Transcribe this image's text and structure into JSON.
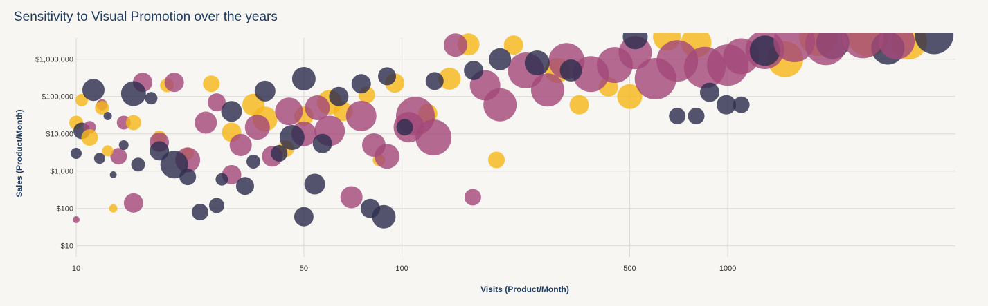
{
  "chart_data": {
    "type": "scatter",
    "title": "Sensitivity to Visual Promotion over the years",
    "xlabel": "Visits (Product/Month)",
    "ylabel": "Sales (Product/Month)",
    "x_scale": "log",
    "y_scale": "log",
    "xlim": [
      10,
      5000
    ],
    "ylim": [
      5,
      5000000
    ],
    "x_ticks": [
      {
        "value": 10,
        "label": "10"
      },
      {
        "value": 50,
        "label": "50"
      },
      {
        "value": 100,
        "label": "100"
      },
      {
        "value": 500,
        "label": "500"
      },
      {
        "value": 1000,
        "label": "1000"
      }
    ],
    "y_ticks": [
      {
        "value": 10,
        "label": "$10"
      },
      {
        "value": 100,
        "label": "$100"
      },
      {
        "value": 1000,
        "label": "$1,000"
      },
      {
        "value": 10000,
        "label": "$10,000"
      },
      {
        "value": 100000,
        "label": "$100,000"
      },
      {
        "value": 1000000,
        "label": "$1,000,000"
      }
    ],
    "grid": true,
    "legend": "none",
    "colors": [
      "#2e2e4f",
      "#f6b71c",
      "#a4497a"
    ],
    "series": [
      {
        "color": "#2e2e4f",
        "points": [
          [
            10,
            3000,
            8
          ],
          [
            10.4,
            12000,
            12
          ],
          [
            11.3,
            150000,
            16
          ],
          [
            11.8,
            2200,
            8
          ],
          [
            12.5,
            30000,
            6
          ],
          [
            13,
            800,
            5
          ],
          [
            14,
            5000,
            7
          ],
          [
            15,
            120000,
            18
          ],
          [
            15.5,
            1500,
            10
          ],
          [
            17,
            90000,
            9
          ],
          [
            18,
            3500,
            14
          ],
          [
            20,
            1500,
            20
          ],
          [
            22,
            700,
            12
          ],
          [
            24,
            80,
            12
          ],
          [
            27,
            120,
            11
          ],
          [
            28,
            600,
            9
          ],
          [
            30,
            40000,
            15
          ],
          [
            33,
            400,
            13
          ],
          [
            35,
            1800,
            10
          ],
          [
            38,
            140000,
            15
          ],
          [
            42,
            3000,
            12
          ],
          [
            46,
            8000,
            18
          ],
          [
            50,
            300000,
            17
          ],
          [
            50,
            60,
            14
          ],
          [
            54,
            450,
            15
          ],
          [
            57,
            5500,
            14
          ],
          [
            64,
            100000,
            14
          ],
          [
            75,
            220000,
            14
          ],
          [
            80,
            100,
            14
          ],
          [
            88,
            60,
            17
          ],
          [
            90,
            350000,
            13
          ],
          [
            102,
            15000,
            12
          ],
          [
            126,
            260000,
            13
          ],
          [
            166,
            500000,
            14
          ],
          [
            200,
            1000000,
            16
          ],
          [
            260,
            800000,
            18
          ],
          [
            330,
            500000,
            16
          ],
          [
            520,
            4000000,
            18
          ],
          [
            700,
            30000,
            12
          ],
          [
            800,
            30000,
            12
          ],
          [
            880,
            130000,
            14
          ],
          [
            990,
            60000,
            14
          ],
          [
            1100,
            60000,
            12
          ],
          [
            1300,
            1700000,
            22
          ],
          [
            2100,
            2800000,
            24
          ],
          [
            3100,
            2000000,
            24
          ],
          [
            4300,
            4500000,
            28
          ]
        ]
      },
      {
        "color": "#f6b71c",
        "points": [
          [
            10,
            20000,
            10
          ],
          [
            10.4,
            80000,
            9
          ],
          [
            11,
            8000,
            12
          ],
          [
            12,
            50000,
            10
          ],
          [
            12.5,
            3500,
            8
          ],
          [
            13,
            100,
            6
          ],
          [
            15,
            20000,
            11
          ],
          [
            18,
            8000,
            10
          ],
          [
            19,
            200000,
            10
          ],
          [
            22,
            3000,
            9
          ],
          [
            26,
            220000,
            12
          ],
          [
            30,
            11000,
            14
          ],
          [
            35,
            60000,
            16
          ],
          [
            38,
            25000,
            18
          ],
          [
            44,
            4000,
            12
          ],
          [
            50,
            30000,
            14
          ],
          [
            60,
            70000,
            18
          ],
          [
            66,
            40000,
            14
          ],
          [
            78,
            110000,
            12
          ],
          [
            85,
            2000,
            9
          ],
          [
            95,
            230000,
            14
          ],
          [
            120,
            35000,
            14
          ],
          [
            140,
            300000,
            16
          ],
          [
            160,
            2500000,
            16
          ],
          [
            195,
            2000,
            12
          ],
          [
            220,
            2400000,
            14
          ],
          [
            300,
            500000,
            18
          ],
          [
            350,
            60000,
            14
          ],
          [
            430,
            180000,
            14
          ],
          [
            500,
            100000,
            18
          ],
          [
            650,
            4000000,
            20
          ],
          [
            800,
            2800000,
            22
          ],
          [
            1500,
            1000000,
            26
          ],
          [
            1900,
            4000000,
            28
          ],
          [
            2700,
            4200000,
            30
          ],
          [
            3600,
            3000000,
            26
          ]
        ]
      },
      {
        "color": "#a4497a",
        "points": [
          [
            10,
            50,
            5
          ],
          [
            11,
            15000,
            9
          ],
          [
            12,
            60000,
            8
          ],
          [
            13.5,
            2500,
            12
          ],
          [
            14,
            20000,
            10
          ],
          [
            15,
            140,
            14
          ],
          [
            16,
            240000,
            14
          ],
          [
            18,
            6000,
            14
          ],
          [
            20,
            240000,
            14
          ],
          [
            22,
            2000,
            18
          ],
          [
            25,
            20000,
            16
          ],
          [
            27,
            70000,
            13
          ],
          [
            30,
            800,
            14
          ],
          [
            32,
            5000,
            16
          ],
          [
            36,
            15000,
            18
          ],
          [
            40,
            2500,
            15
          ],
          [
            45,
            40000,
            20
          ],
          [
            50,
            10000,
            18
          ],
          [
            55,
            50000,
            18
          ],
          [
            60,
            12000,
            22
          ],
          [
            70,
            200,
            16
          ],
          [
            75,
            30000,
            22
          ],
          [
            82,
            5000,
            17
          ],
          [
            90,
            2500,
            18
          ],
          [
            105,
            15000,
            22
          ],
          [
            110,
            30000,
            28
          ],
          [
            125,
            8000,
            26
          ],
          [
            146,
            2400000,
            17
          ],
          [
            165,
            200,
            12
          ],
          [
            180,
            200000,
            22
          ],
          [
            200,
            60000,
            24
          ],
          [
            240,
            500000,
            26
          ],
          [
            280,
            150000,
            24
          ],
          [
            320,
            900000,
            26
          ],
          [
            380,
            400000,
            26
          ],
          [
            450,
            700000,
            26
          ],
          [
            520,
            1500000,
            24
          ],
          [
            600,
            300000,
            30
          ],
          [
            700,
            900000,
            30
          ],
          [
            850,
            600000,
            30
          ],
          [
            1000,
            700000,
            30
          ],
          [
            1100,
            1200000,
            26
          ],
          [
            1300,
            1800000,
            28
          ],
          [
            1600,
            3000000,
            30
          ],
          [
            2000,
            2500000,
            30
          ],
          [
            2600,
            3800000,
            30
          ],
          [
            3300,
            3000000,
            26
          ]
        ]
      }
    ]
  }
}
